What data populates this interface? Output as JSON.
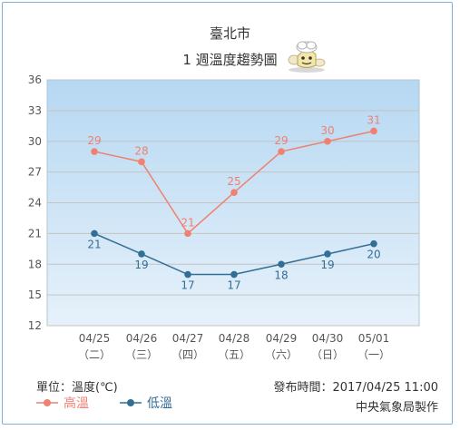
{
  "chart_data": {
    "type": "line",
    "title": "臺北市",
    "subtitle": "1 週溫度趨勢圖",
    "categories": [
      "04/25",
      "04/26",
      "04/27",
      "04/28",
      "04/29",
      "04/30",
      "05/01"
    ],
    "weekdays": [
      "（二）",
      "（三）",
      "（四）",
      "（五）",
      "（六）",
      "（日）",
      "（一）"
    ],
    "ylim": [
      12,
      36
    ],
    "yticks": [
      12,
      15,
      18,
      21,
      24,
      27,
      30,
      33,
      36
    ],
    "grid": true,
    "series": [
      {
        "name": "高溫",
        "color": "#f08070",
        "values": [
          29,
          28,
          21,
          25,
          29,
          30,
          31
        ]
      },
      {
        "name": "低溫",
        "color": "#336e94",
        "values": [
          21,
          19,
          17,
          17,
          18,
          19,
          20
        ]
      }
    ],
    "unit_label": "單位：溫度(℃)",
    "publish_time": "發布時間：2017/04/25 11:00",
    "credit": "中央氣象局製作"
  },
  "colors": {
    "plot_top": "#b6d8f2",
    "plot_bottom": "#e6f1fa",
    "grid": "#c4c4c4",
    "axis_text": "#555555",
    "border": "#7fb2d8"
  }
}
